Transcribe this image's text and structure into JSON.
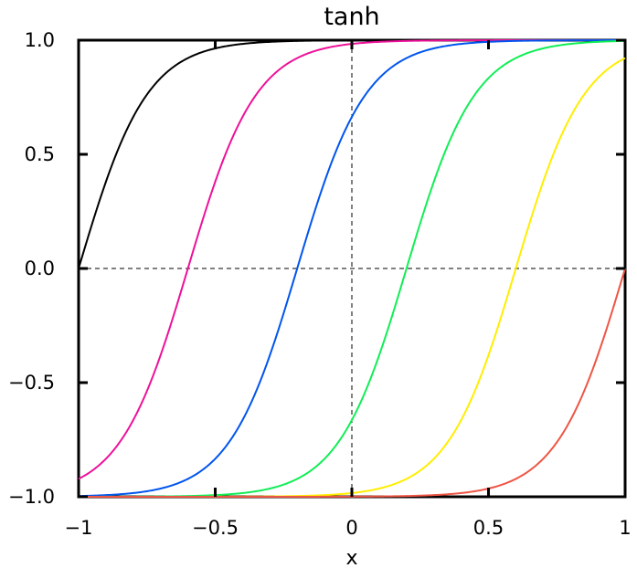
{
  "chart_data": {
    "type": "line",
    "title": "tanh",
    "xlabel": "x",
    "ylabel": "",
    "xlim": [
      -1,
      1
    ],
    "ylim": [
      -1,
      1
    ],
    "x_ticks": [
      {
        "value": -1,
        "label": "−1"
      },
      {
        "value": -0.5,
        "label": "−0.5"
      },
      {
        "value": 0,
        "label": "0"
      },
      {
        "value": 0.5,
        "label": "0.5"
      },
      {
        "value": 1,
        "label": "1"
      }
    ],
    "y_ticks": [
      {
        "value": 1,
        "label": "1.0"
      },
      {
        "value": 0.5,
        "label": "0.5"
      },
      {
        "value": 0,
        "label": "0.0"
      },
      {
        "value": -0.5,
        "label": "−0.5"
      },
      {
        "value": -1,
        "label": "−1.0"
      }
    ],
    "grid": false,
    "reference_lines": {
      "x": 0,
      "y": 0,
      "style": "dashed"
    },
    "function": "tanh",
    "slope": 4,
    "series": [
      {
        "center": -1.0,
        "color": "#000000"
      },
      {
        "center": -0.6,
        "color": "#ee1199"
      },
      {
        "center": -0.2,
        "color": "#0055ee"
      },
      {
        "center": 0.2,
        "color": "#11ee55"
      },
      {
        "center": 0.6,
        "color": "#ffee00"
      },
      {
        "center": 1.0,
        "color": "#ee5544"
      }
    ]
  }
}
